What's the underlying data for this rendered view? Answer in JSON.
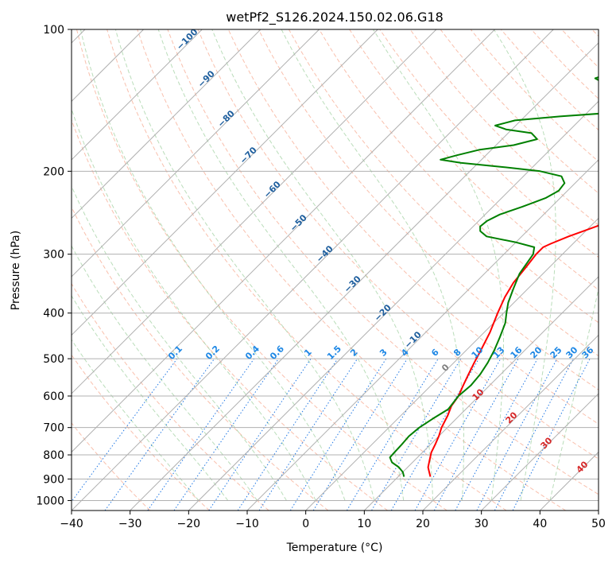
{
  "chart_data": {
    "type": "line",
    "title": "wetPf2_S126.2024.150.02.06.G18",
    "xlabel": "Temperature (°C)",
    "ylabel": "Pressure (hPa)",
    "xlim": [
      -40,
      50
    ],
    "ylim": [
      1050,
      100
    ],
    "y_scale": "log",
    "grid": true,
    "x_ticks": [
      -40,
      -30,
      -20,
      -10,
      0,
      10,
      20,
      30,
      40,
      50
    ],
    "y_ticks": [
      100,
      200,
      300,
      400,
      500,
      600,
      700,
      800,
      900,
      1000
    ],
    "series": [
      {
        "color": "#ff0000",
        "points": [
          [
            15.5,
            890
          ],
          [
            14.5,
            870
          ],
          [
            13.5,
            850
          ],
          [
            12.5,
            820
          ],
          [
            11.5,
            790
          ],
          [
            10.8,
            760
          ],
          [
            10,
            730
          ],
          [
            9,
            700
          ],
          [
            8,
            660
          ],
          [
            7,
            630
          ],
          [
            6.5,
            600
          ],
          [
            5.5,
            570
          ],
          [
            4.5,
            540
          ],
          [
            3.5,
            510
          ],
          [
            2.5,
            480
          ],
          [
            1,
            440
          ],
          [
            -1,
            400
          ],
          [
            -2.5,
            370
          ],
          [
            -3.5,
            345
          ],
          [
            -4,
            320
          ],
          [
            -4.5,
            300
          ],
          [
            -4.5,
            290
          ],
          [
            -3.8,
            285
          ],
          [
            -2,
            275
          ],
          [
            1,
            262
          ],
          [
            4,
            250
          ],
          [
            7,
            238
          ],
          [
            9,
            225
          ],
          [
            11,
            212
          ],
          [
            13,
            200
          ],
          [
            14.5,
            188
          ],
          [
            15.5,
            175
          ],
          [
            16.5,
            163
          ],
          [
            17.5,
            153
          ],
          [
            18.5,
            143
          ],
          [
            19.5,
            133
          ],
          [
            21,
            124
          ],
          [
            22,
            118
          ],
          [
            23,
            112
          ],
          [
            23.5,
            106
          ],
          [
            24,
            100
          ]
        ]
      },
      {
        "color": "#008000",
        "points": [
          [
            11,
            890
          ],
          [
            10,
            870
          ],
          [
            8.5,
            850
          ],
          [
            6.5,
            830
          ],
          [
            5.3,
            810
          ],
          [
            5.2,
            790
          ],
          [
            5.1,
            760
          ],
          [
            4.9,
            730
          ],
          [
            5.2,
            700
          ],
          [
            6,
            670
          ],
          [
            7,
            640
          ],
          [
            6.5,
            600
          ],
          [
            6.8,
            570
          ],
          [
            6.5,
            540
          ],
          [
            5.8,
            510
          ],
          [
            4.8,
            480
          ],
          [
            3.5,
            450
          ],
          [
            2,
            420
          ],
          [
            0.5,
            400
          ],
          [
            -1,
            380
          ],
          [
            -2.5,
            355
          ],
          [
            -4,
            330
          ],
          [
            -5,
            300
          ],
          [
            -6,
            290
          ],
          [
            -10,
            283
          ],
          [
            -16,
            275
          ],
          [
            -18,
            268
          ],
          [
            -18.8,
            262
          ],
          [
            -18.6,
            255
          ],
          [
            -17.5,
            247
          ],
          [
            -15,
            238
          ],
          [
            -12.5,
            228
          ],
          [
            -11.5,
            220
          ],
          [
            -11.8,
            212
          ],
          [
            -13.5,
            205
          ],
          [
            -18,
            200
          ],
          [
            -25,
            196
          ],
          [
            -33,
            192
          ],
          [
            -37,
            189
          ],
          [
            -35,
            185
          ],
          [
            -32,
            180
          ],
          [
            -27,
            176
          ],
          [
            -24,
            171
          ],
          [
            -26,
            166
          ],
          [
            -31,
            163
          ],
          [
            -33.5,
            160
          ],
          [
            -31,
            156
          ],
          [
            -24,
            153
          ],
          [
            -15,
            150
          ],
          [
            -8,
            147
          ],
          [
            -3,
            143
          ],
          [
            -2,
            140
          ],
          [
            -4,
            137
          ],
          [
            -10,
            134
          ],
          [
            -18,
            131
          ],
          [
            -23,
            129
          ],
          [
            -24.5,
            127
          ],
          [
            -23.5,
            125
          ],
          [
            -16,
            123
          ],
          [
            -6,
            121
          ],
          [
            0,
            118
          ],
          [
            1.5,
            114
          ],
          [
            2.5,
            110
          ],
          [
            3,
            105
          ],
          [
            3.2,
            100
          ]
        ]
      }
    ],
    "dry_adiabat_labels": [
      "-100",
      "-90",
      "-80",
      "-70",
      "-60",
      "-50",
      "-40",
      "-30",
      "-20",
      "-10"
    ],
    "mixing_ratio_labels": [
      "0.1",
      "0.2",
      "0.4",
      "0.6",
      "1",
      "1.5",
      "2",
      "3",
      "4",
      "6",
      "8",
      "10",
      "13",
      "16",
      "20",
      "25",
      "30",
      "36"
    ],
    "moist_adiabat_labels": [
      "0",
      "10",
      "20",
      "30",
      "40"
    ]
  }
}
